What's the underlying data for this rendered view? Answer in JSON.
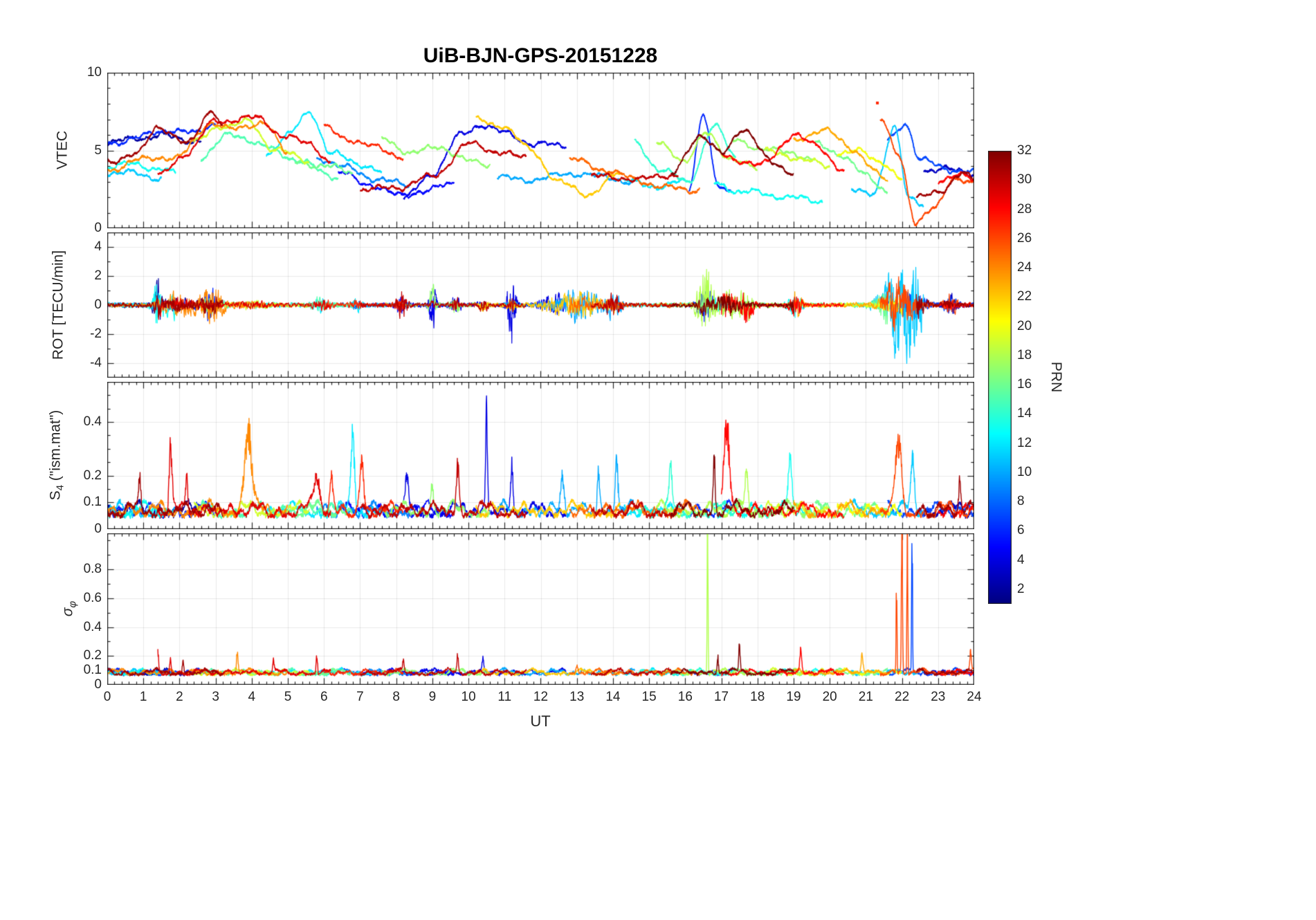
{
  "chart_data": {
    "type": "line",
    "title": "UiB-BJN-GPS-20151228",
    "xlabel": "UT",
    "x_range": [
      0,
      24
    ],
    "x_ticks": [
      0,
      1,
      2,
      3,
      4,
      5,
      6,
      7,
      8,
      9,
      10,
      11,
      12,
      13,
      14,
      15,
      16,
      17,
      18,
      19,
      20,
      21,
      22,
      23,
      24
    ],
    "colorbar": {
      "label": "PRN",
      "range": [
        1,
        32
      ],
      "ticks": [
        2,
        4,
        6,
        8,
        10,
        12,
        14,
        16,
        18,
        20,
        22,
        24,
        26,
        28,
        30,
        32
      ],
      "colormap": "jet"
    },
    "panels": [
      {
        "name": "vtec",
        "ylabel": {
          "prefix": "VTEC",
          "sub": "",
          "suffix": ""
        },
        "ylim": [
          0,
          10
        ],
        "yticks": [
          0,
          5,
          10
        ],
        "yminor": 1
      },
      {
        "name": "rot",
        "ylabel": {
          "prefix": "ROT [TECU/min]",
          "sub": "",
          "suffix": ""
        },
        "ylim": [
          -5,
          5
        ],
        "yticks": [
          -4,
          -2,
          0,
          2,
          4
        ],
        "yminor": 1
      },
      {
        "name": "s4",
        "ylabel": {
          "prefix": "S",
          "sub": "4",
          "suffix": " (\"ism.mat\")"
        },
        "ylim": [
          0,
          0.55
        ],
        "yticks": [
          0,
          0.1,
          0.2,
          0.4
        ],
        "yminor": 0.05
      },
      {
        "name": "sigma_phi",
        "ylabel": {
          "prefix": "σ",
          "sub": "φ",
          "suffix": ""
        },
        "ylim": [
          0,
          1.05
        ],
        "yticks": [
          0,
          0.1,
          0.2,
          0.4,
          0.6,
          0.8
        ],
        "yminor": 0.1
      }
    ],
    "vtec_arcs": [
      {
        "prn": 2,
        "keys": [
          [
            0,
            5.2
          ],
          [
            0.9,
            5.8
          ],
          [
            1.7,
            6.1
          ],
          [
            2.6,
            5.7
          ]
        ]
      },
      {
        "prn": 6,
        "keys": [
          [
            0,
            5.6
          ],
          [
            0.8,
            6.0
          ],
          [
            1.6,
            6.3
          ],
          [
            2.4,
            5.9
          ],
          [
            3.0,
            6.6
          ]
        ]
      },
      {
        "prn": 24,
        "keys": [
          [
            0,
            3.6
          ],
          [
            0.9,
            4.2
          ],
          [
            1.9,
            4.6
          ],
          [
            2.9,
            7.0
          ],
          [
            3.5,
            6.4
          ],
          [
            4.3,
            6.7
          ],
          [
            5.0,
            4.6
          ]
        ]
      },
      {
        "prn": 29,
        "keys": [
          [
            1.4,
            3.4
          ],
          [
            2.2,
            4.7
          ],
          [
            3.0,
            6.7
          ],
          [
            4.2,
            7.2
          ],
          [
            4.9,
            6.1
          ],
          [
            5.6,
            5.5
          ],
          [
            6.2,
            4.1
          ]
        ]
      },
      {
        "prn": 31,
        "keys": [
          [
            0,
            4.4
          ],
          [
            0.8,
            4.9
          ],
          [
            1.4,
            6.7
          ],
          [
            2.2,
            5.3
          ],
          [
            2.9,
            7.4
          ],
          [
            3.2,
            6.3
          ]
        ]
      },
      {
        "prn": 19,
        "keys": [
          [
            2.4,
            5.3
          ],
          [
            3.2,
            6.6
          ],
          [
            3.9,
            7.0
          ],
          [
            4.6,
            5.3
          ],
          [
            5.6,
            4.2
          ]
        ]
      },
      {
        "prn": 15,
        "keys": [
          [
            2.6,
            4.7
          ],
          [
            3.4,
            6.1
          ],
          [
            4.4,
            5.0
          ],
          [
            5.4,
            4.2
          ],
          [
            6.4,
            3.5
          ]
        ]
      },
      {
        "prn": 12,
        "keys": [
          [
            4.4,
            5.0
          ],
          [
            5.0,
            6.1
          ],
          [
            5.6,
            7.5
          ],
          [
            6.2,
            4.6
          ],
          [
            7.0,
            4.0
          ],
          [
            7.6,
            3.6
          ]
        ]
      },
      {
        "prn": 27,
        "keys": [
          [
            6.0,
            6.3
          ],
          [
            6.6,
            5.6
          ],
          [
            7.4,
            5.2
          ],
          [
            8.2,
            4.8
          ]
        ]
      },
      {
        "prn": 5,
        "keys": [
          [
            6.4,
            3.4
          ],
          [
            7.2,
            2.7
          ],
          [
            8.0,
            2.2
          ],
          [
            8.8,
            2.6
          ],
          [
            9.6,
            3.0
          ]
        ]
      },
      {
        "prn": 9,
        "keys": [
          [
            5.8,
            4.4
          ],
          [
            6.6,
            3.7
          ],
          [
            7.4,
            3.2
          ],
          [
            8.4,
            3.0
          ]
        ]
      },
      {
        "prn": 17,
        "keys": [
          [
            7.6,
            5.6
          ],
          [
            8.4,
            4.7
          ],
          [
            9.2,
            5.4
          ],
          [
            10.0,
            4.5
          ],
          [
            10.6,
            4.2
          ]
        ]
      },
      {
        "prn": 30,
        "keys": [
          [
            7.0,
            2.6
          ],
          [
            8.0,
            2.4
          ],
          [
            9.0,
            3.2
          ],
          [
            10.0,
            5.6
          ],
          [
            10.8,
            5.1
          ],
          [
            11.6,
            4.4
          ]
        ]
      },
      {
        "prn": 4,
        "keys": [
          [
            8.2,
            2.0
          ],
          [
            9.0,
            3.4
          ],
          [
            9.8,
            5.8
          ],
          [
            10.4,
            6.6
          ],
          [
            11.0,
            6.2
          ],
          [
            11.9,
            5.6
          ],
          [
            12.7,
            5.3
          ]
        ]
      },
      {
        "prn": 10,
        "keys": [
          [
            10.8,
            3.4
          ],
          [
            11.8,
            3.3
          ],
          [
            12.8,
            3.4
          ],
          [
            13.8,
            3.1
          ],
          [
            14.6,
            3.0
          ]
        ]
      },
      {
        "prn": 22,
        "keys": [
          [
            10.2,
            7.0
          ],
          [
            10.9,
            6.5
          ],
          [
            11.7,
            4.9
          ],
          [
            12.5,
            3.0
          ],
          [
            13.3,
            2.4
          ],
          [
            14.2,
            3.6
          ]
        ]
      },
      {
        "prn": 25,
        "keys": [
          [
            12.8,
            4.4
          ],
          [
            13.7,
            3.6
          ],
          [
            14.6,
            3.1
          ],
          [
            15.5,
            2.8
          ],
          [
            16.4,
            2.6
          ]
        ]
      },
      {
        "prn": 13,
        "keys": [
          [
            0,
            3.9
          ],
          [
            0.8,
            4.3
          ],
          [
            1.4,
            4.0
          ],
          [
            1.9,
            3.6
          ]
        ]
      },
      {
        "prn": 11,
        "keys": [
          [
            0,
            3.5
          ],
          [
            0.8,
            3.7
          ],
          [
            1.5,
            3.4
          ]
        ]
      },
      {
        "prn": 16,
        "keys": [
          [
            5.2,
            4.2
          ],
          [
            6.0,
            3.8
          ],
          [
            6.8,
            3.5
          ]
        ]
      },
      {
        "prn": 14,
        "keys": [
          [
            14.6,
            5.6
          ],
          [
            15.3,
            4.0
          ],
          [
            16.1,
            3.0
          ],
          [
            16.8,
            6.4
          ],
          [
            17.4,
            4.4
          ]
        ]
      },
      {
        "prn": 18,
        "keys": [
          [
            15.2,
            5.4
          ],
          [
            16.0,
            4.2
          ],
          [
            16.6,
            5.9
          ],
          [
            17.2,
            4.6
          ],
          [
            18.0,
            4.0
          ]
        ]
      },
      {
        "prn": 32,
        "keys": [
          [
            15.6,
            3.4
          ],
          [
            16.4,
            5.8
          ],
          [
            17.0,
            4.6
          ],
          [
            17.6,
            6.4
          ],
          [
            18.4,
            4.4
          ],
          [
            19.0,
            3.8
          ]
        ]
      },
      {
        "prn": 28,
        "keys": [
          [
            17.0,
            4.7
          ],
          [
            18.0,
            4.2
          ],
          [
            19.0,
            6.0
          ],
          [
            19.6,
            5.3
          ],
          [
            20.4,
            3.4
          ]
        ]
      },
      {
        "prn": 6,
        "keys": [
          [
            16.1,
            2.5
          ],
          [
            16.5,
            7.3
          ],
          [
            16.9,
            3.0
          ],
          [
            17.3,
            2.6
          ]
        ]
      },
      {
        "prn": 12,
        "keys": [
          [
            14.3,
            3.1
          ],
          [
            15.2,
            2.9
          ],
          [
            16.0,
            3.1
          ]
        ]
      },
      {
        "prn": 30,
        "keys": [
          [
            13.4,
            3.6
          ],
          [
            14.2,
            3.2
          ],
          [
            15.0,
            3.0
          ],
          [
            15.8,
            3.3
          ]
        ]
      },
      {
        "prn": 17,
        "keys": [
          [
            17.3,
            5.8
          ],
          [
            18.1,
            5.2
          ],
          [
            18.9,
            4.6
          ],
          [
            19.6,
            4.3
          ]
        ]
      },
      {
        "prn": 13,
        "keys": [
          [
            16.8,
            3.0
          ],
          [
            17.6,
            2.2
          ],
          [
            18.6,
            1.9
          ],
          [
            19.8,
            1.9
          ]
        ]
      },
      {
        "prn": 19,
        "keys": [
          [
            18.2,
            4.9
          ],
          [
            18.8,
            4.4
          ],
          [
            19.4,
            4.6
          ],
          [
            20.0,
            4.0
          ]
        ]
      },
      {
        "prn": 23,
        "keys": [
          [
            19.0,
            5.5
          ],
          [
            19.8,
            6.2
          ],
          [
            20.6,
            5.0
          ],
          [
            21.6,
            3.2
          ]
        ]
      },
      {
        "prn": 16,
        "keys": [
          [
            19.6,
            5.2
          ],
          [
            20.3,
            4.6
          ],
          [
            21.0,
            3.4
          ],
          [
            21.6,
            2.6
          ]
        ]
      },
      {
        "prn": 20,
        "keys": [
          [
            20.2,
            4.4
          ],
          [
            20.8,
            5.0
          ],
          [
            21.4,
            4.0
          ],
          [
            22.0,
            3.4
          ]
        ]
      },
      {
        "prn": 11,
        "keys": [
          [
            20.6,
            2.6
          ],
          [
            21.2,
            2.2
          ],
          [
            21.8,
            6.8
          ],
          [
            22.2,
            2.0
          ],
          [
            22.6,
            1.4
          ]
        ]
      },
      {
        "prn": 7,
        "keys": [
          [
            21.6,
            5.4
          ],
          [
            22.1,
            6.6
          ],
          [
            22.5,
            4.4
          ],
          [
            23.2,
            4.0
          ],
          [
            24,
            3.8
          ]
        ]
      },
      {
        "prn": 26,
        "keys": [
          [
            21.4,
            7.0
          ],
          [
            21.9,
            5.0
          ],
          [
            22.4,
            0.5
          ],
          [
            22.9,
            1.4
          ],
          [
            23.4,
            3.2
          ],
          [
            24,
            2.6
          ]
        ]
      },
      {
        "prn": 3,
        "keys": [
          [
            22.6,
            3.6
          ],
          [
            23.2,
            4.2
          ],
          [
            24,
            3.4
          ]
        ]
      },
      {
        "prn": 31,
        "keys": [
          [
            22.4,
            2.0
          ],
          [
            23.0,
            2.6
          ],
          [
            23.7,
            3.6
          ],
          [
            24,
            3.1
          ]
        ]
      },
      {
        "prn": 28,
        "keys": [
          [
            23.0,
            3.3
          ],
          [
            23.5,
            3.6
          ],
          [
            24,
            3.2
          ]
        ]
      }
    ],
    "vtec_outlier_points": [
      [
        21.32,
        8.05,
        27
      ]
    ],
    "rot_bursts": [
      [
        1.4,
        0.08,
        2.2
      ],
      [
        2.0,
        0.35,
        1.2
      ],
      [
        2.9,
        0.25,
        1.6
      ],
      [
        4.0,
        0.3,
        0.7
      ],
      [
        5.9,
        0.15,
        0.7
      ],
      [
        6.9,
        0.1,
        0.8
      ],
      [
        8.15,
        0.1,
        1.3
      ],
      [
        9.0,
        0.07,
        2.8
      ],
      [
        9.65,
        0.1,
        1.2
      ],
      [
        10.4,
        0.1,
        0.8
      ],
      [
        11.2,
        0.08,
        3.4
      ],
      [
        12.3,
        0.25,
        1.5
      ],
      [
        13.1,
        0.4,
        1.2
      ],
      [
        14.0,
        0.15,
        0.8
      ],
      [
        16.55,
        0.15,
        3.6
      ],
      [
        17.15,
        0.2,
        2.2
      ],
      [
        17.7,
        0.15,
        1.2
      ],
      [
        19.05,
        0.12,
        1.2
      ],
      [
        21.85,
        0.3,
        3.4
      ],
      [
        22.3,
        0.25,
        3.0
      ],
      [
        23.35,
        0.12,
        1.0
      ]
    ],
    "s4_spikes": [
      [
        0.9,
        0.1,
        31,
        0.03
      ],
      [
        1.75,
        0.22,
        29,
        0.04
      ],
      [
        2.2,
        0.12,
        29,
        0.03
      ],
      [
        3.9,
        0.3,
        24,
        0.1
      ],
      [
        5.8,
        0.12,
        29,
        0.08
      ],
      [
        6.2,
        0.13,
        27,
        0.05
      ],
      [
        6.8,
        0.27,
        12,
        0.05
      ],
      [
        7.05,
        0.18,
        27,
        0.05
      ],
      [
        8.3,
        0.1,
        4,
        0.04
      ],
      [
        9.0,
        0.1,
        17,
        0.04
      ],
      [
        9.7,
        0.16,
        30,
        0.04
      ],
      [
        10.5,
        0.33,
        4,
        0.025
      ],
      [
        11.2,
        0.15,
        4,
        0.03
      ],
      [
        12.6,
        0.12,
        10,
        0.05
      ],
      [
        13.6,
        0.14,
        10,
        0.03
      ],
      [
        14.1,
        0.19,
        10,
        0.04
      ],
      [
        15.6,
        0.14,
        14,
        0.04
      ],
      [
        16.8,
        0.2,
        32,
        0.03
      ],
      [
        17.15,
        0.3,
        28,
        0.07
      ],
      [
        17.7,
        0.17,
        18,
        0.04
      ],
      [
        18.9,
        0.19,
        13,
        0.05
      ],
      [
        21.9,
        0.24,
        26,
        0.08
      ],
      [
        22.3,
        0.17,
        11,
        0.05
      ],
      [
        23.6,
        0.1,
        31,
        0.03
      ]
    ],
    "sigma_phi_spikes": [
      [
        1.4,
        0.12,
        29,
        0.02
      ],
      [
        1.75,
        0.1,
        29,
        0.02
      ],
      [
        2.1,
        0.1,
        31,
        0.02
      ],
      [
        3.6,
        0.15,
        24,
        0.02
      ],
      [
        4.6,
        0.08,
        29,
        0.02
      ],
      [
        5.8,
        0.13,
        29,
        0.02
      ],
      [
        8.2,
        0.08,
        30,
        0.02
      ],
      [
        9.7,
        0.12,
        30,
        0.02
      ],
      [
        10.4,
        0.08,
        4,
        0.02
      ],
      [
        13.0,
        0.06,
        25,
        0.03
      ],
      [
        16.62,
        1.15,
        18,
        0.012
      ],
      [
        16.9,
        0.12,
        32,
        0.02
      ],
      [
        17.5,
        0.17,
        32,
        0.02
      ],
      [
        19.2,
        0.14,
        28,
        0.025
      ],
      [
        20.9,
        0.13,
        23,
        0.03
      ],
      [
        21.85,
        0.6,
        26,
        0.012
      ],
      [
        22.0,
        1.1,
        26,
        0.015
      ],
      [
        22.15,
        1.05,
        26,
        0.012
      ],
      [
        22.28,
        1.0,
        7,
        0.012
      ],
      [
        23.9,
        0.12,
        26,
        0.02
      ]
    ]
  }
}
